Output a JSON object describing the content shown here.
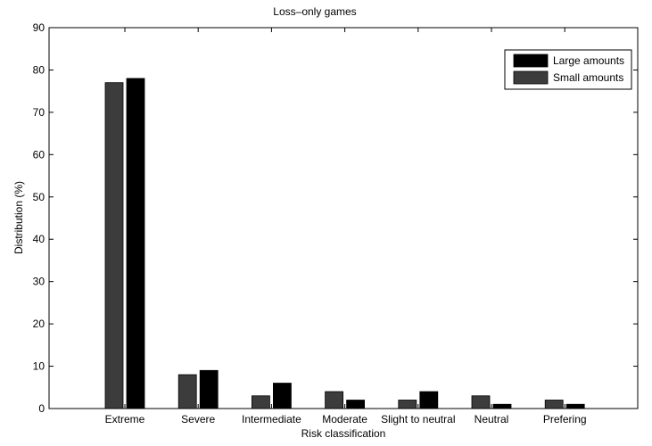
{
  "chart_data": {
    "type": "bar",
    "title": "Loss–only games",
    "xlabel": "Risk classification",
    "ylabel": "Distribution (%)",
    "ylim": [
      0,
      90
    ],
    "yticks": [
      0,
      10,
      20,
      30,
      40,
      50,
      60,
      70,
      80,
      90
    ],
    "grid": false,
    "legend_position": "top-right",
    "categories": [
      "Extreme",
      "Severe",
      "Intermediate",
      "Moderate",
      "Slight to neutral",
      "Neutral",
      "Prefering"
    ],
    "series": [
      {
        "name": "Small amounts",
        "color": "#3c3c3c",
        "values": [
          77,
          8,
          3,
          4,
          2,
          3,
          2
        ]
      },
      {
        "name": "Large amounts",
        "color": "#000000",
        "values": [
          78,
          9,
          6,
          2,
          4,
          1,
          1
        ]
      }
    ],
    "legend_order": [
      1,
      0
    ]
  }
}
